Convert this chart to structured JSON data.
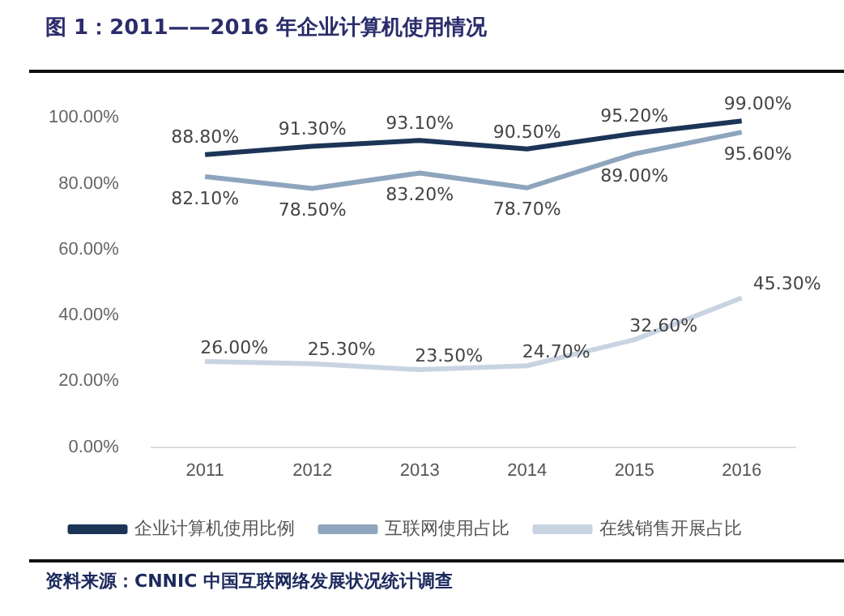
{
  "chart_data": {
    "type": "line",
    "title": "图 1：2011——2016 年企业计算机使用情况",
    "categories": [
      "2011",
      "2012",
      "2013",
      "2014",
      "2015",
      "2016"
    ],
    "series": [
      {
        "name": "企业计算机使用比例",
        "color": "#1c3557",
        "values": [
          88.8,
          91.3,
          93.1,
          90.5,
          95.2,
          99.0
        ],
        "value_labels": [
          "88.80%",
          "91.30%",
          "93.10%",
          "90.50%",
          "95.20%",
          "99.00%"
        ]
      },
      {
        "name": "互联网使用占比",
        "color": "#8ea5bd",
        "values": [
          82.1,
          78.5,
          83.2,
          78.7,
          89.0,
          95.6
        ],
        "value_labels": [
          "82.10%",
          "78.50%",
          "83.20%",
          "78.70%",
          "89.00%",
          "95.60%"
        ]
      },
      {
        "name": "在线销售开展占比",
        "color": "#c9d4e2",
        "values": [
          26.0,
          25.3,
          23.5,
          24.7,
          32.6,
          45.3
        ],
        "value_labels": [
          "26.00%",
          "25.30%",
          "23.50%",
          "24.70%",
          "32.60%",
          "45.30%"
        ]
      }
    ],
    "ylim": [
      0,
      100
    ],
    "yticks": [
      {
        "value": 0,
        "label": "0.00%"
      },
      {
        "value": 20,
        "label": "20.00%"
      },
      {
        "value": 40,
        "label": "40.00%"
      },
      {
        "value": 60,
        "label": "60.00%"
      },
      {
        "value": 80,
        "label": "80.00%"
      },
      {
        "value": 100,
        "label": "100.00%"
      }
    ],
    "grid": false,
    "legend": "bottom",
    "marker": "none",
    "line_style": "solid",
    "annotations": [
      "资料来源：CNNIC 中国互联网络发展状况统计调查"
    ]
  }
}
